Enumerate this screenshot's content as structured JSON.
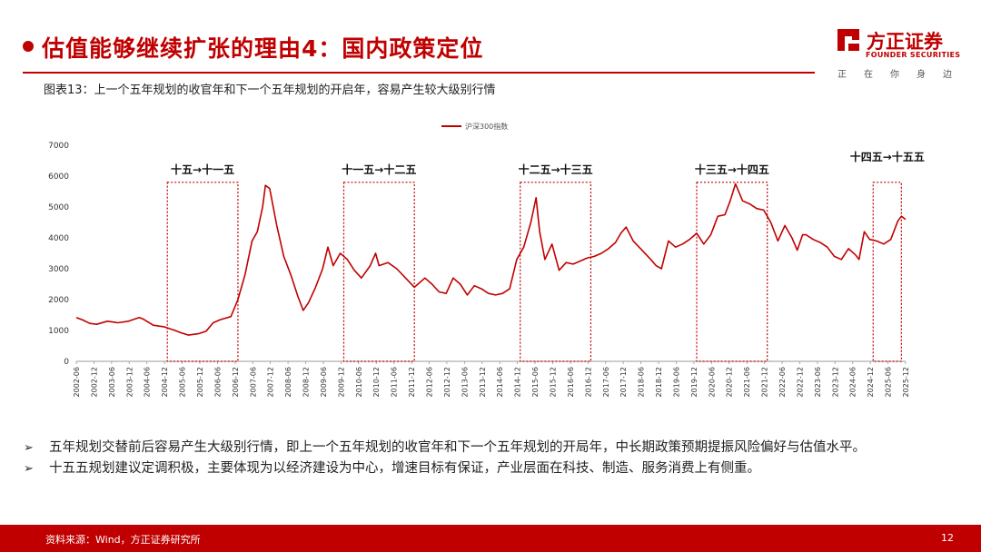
{
  "header": {
    "title": "估值能够继续扩张的理由4：国内政策定位"
  },
  "logo": {
    "name_cn": "方正证券",
    "name_en": "FOUNDER SECURITIES",
    "slogan": [
      "正",
      "在",
      "你",
      "身",
      "边"
    ]
  },
  "figure": {
    "caption": "图表13：上一个五年规划的收官年和下一个五年规划的开启年，容易产生较大级别行情"
  },
  "chart_data": {
    "type": "line",
    "legend": "沪深300指数",
    "legend_position": "top-center",
    "ylim": [
      0,
      7000
    ],
    "yticks": [
      0,
      1000,
      2000,
      3000,
      4000,
      5000,
      6000,
      7000
    ],
    "xtick_labels": [
      "2002-06",
      "2002-12",
      "2003-06",
      "2003-12",
      "2004-06",
      "2004-12",
      "2005-06",
      "2005-12",
      "2006-06",
      "2006-12",
      "2007-06",
      "2007-12",
      "2008-06",
      "2008-12",
      "2009-06",
      "2009-12",
      "2010-06",
      "2010-12",
      "2011-06",
      "2011-12",
      "2012-06",
      "2012-12",
      "2013-06",
      "2013-12",
      "2014-06",
      "2014-12",
      "2015-06",
      "2015-12",
      "2016-06",
      "2016-12",
      "2017-06",
      "2017-12",
      "2018-06",
      "2018-12",
      "2019-06",
      "2019-12",
      "2020-06",
      "2020-12",
      "2021-06",
      "2021-12",
      "2022-06",
      "2022-12",
      "2023-06",
      "2023-12",
      "2024-06",
      "2024-12",
      "2025-06",
      "2025-12"
    ],
    "x_start": 2002.42,
    "x_end": 2025.92,
    "series": [
      {
        "name": "沪深300指数",
        "color": "#c00000",
        "points": [
          [
            2002.42,
            1420
          ],
          [
            2002.6,
            1340
          ],
          [
            2002.8,
            1230
          ],
          [
            2003.0,
            1200
          ],
          [
            2003.3,
            1300
          ],
          [
            2003.6,
            1250
          ],
          [
            2003.9,
            1300
          ],
          [
            2004.2,
            1420
          ],
          [
            2004.3,
            1380
          ],
          [
            2004.6,
            1170
          ],
          [
            2004.9,
            1120
          ],
          [
            2005.2,
            1010
          ],
          [
            2005.4,
            920
          ],
          [
            2005.6,
            850
          ],
          [
            2005.9,
            900
          ],
          [
            2006.1,
            980
          ],
          [
            2006.3,
            1250
          ],
          [
            2006.5,
            1350
          ],
          [
            2006.8,
            1450
          ],
          [
            2007.0,
            2000
          ],
          [
            2007.2,
            2800
          ],
          [
            2007.4,
            3900
          ],
          [
            2007.55,
            4200
          ],
          [
            2007.7,
            5000
          ],
          [
            2007.78,
            5700
          ],
          [
            2007.9,
            5600
          ],
          [
            2008.0,
            5000
          ],
          [
            2008.1,
            4400
          ],
          [
            2008.3,
            3400
          ],
          [
            2008.5,
            2800
          ],
          [
            2008.7,
            2100
          ],
          [
            2008.85,
            1650
          ],
          [
            2009.0,
            1900
          ],
          [
            2009.2,
            2400
          ],
          [
            2009.4,
            3000
          ],
          [
            2009.55,
            3700
          ],
          [
            2009.7,
            3100
          ],
          [
            2009.9,
            3500
          ],
          [
            2010.1,
            3300
          ],
          [
            2010.3,
            2950
          ],
          [
            2010.5,
            2700
          ],
          [
            2010.75,
            3100
          ],
          [
            2010.9,
            3500
          ],
          [
            2011.0,
            3100
          ],
          [
            2011.25,
            3200
          ],
          [
            2011.5,
            3000
          ],
          [
            2011.75,
            2700
          ],
          [
            2012.0,
            2400
          ],
          [
            2012.3,
            2700
          ],
          [
            2012.5,
            2500
          ],
          [
            2012.7,
            2250
          ],
          [
            2012.9,
            2200
          ],
          [
            2013.1,
            2700
          ],
          [
            2013.3,
            2500
          ],
          [
            2013.5,
            2150
          ],
          [
            2013.7,
            2450
          ],
          [
            2013.9,
            2350
          ],
          [
            2014.1,
            2200
          ],
          [
            2014.3,
            2150
          ],
          [
            2014.5,
            2200
          ],
          [
            2014.7,
            2350
          ],
          [
            2014.9,
            3300
          ],
          [
            2015.1,
            3700
          ],
          [
            2015.3,
            4500
          ],
          [
            2015.45,
            5300
          ],
          [
            2015.55,
            4200
          ],
          [
            2015.7,
            3300
          ],
          [
            2015.9,
            3800
          ],
          [
            2016.1,
            2950
          ],
          [
            2016.3,
            3200
          ],
          [
            2016.5,
            3150
          ],
          [
            2016.7,
            3250
          ],
          [
            2016.9,
            3350
          ],
          [
            2017.1,
            3400
          ],
          [
            2017.3,
            3500
          ],
          [
            2017.5,
            3650
          ],
          [
            2017.7,
            3850
          ],
          [
            2017.85,
            4150
          ],
          [
            2018.0,
            4350
          ],
          [
            2018.2,
            3900
          ],
          [
            2018.45,
            3600
          ],
          [
            2018.7,
            3300
          ],
          [
            2018.85,
            3100
          ],
          [
            2019.0,
            3000
          ],
          [
            2019.2,
            3900
          ],
          [
            2019.4,
            3700
          ],
          [
            2019.6,
            3800
          ],
          [
            2019.8,
            3950
          ],
          [
            2020.0,
            4150
          ],
          [
            2020.2,
            3800
          ],
          [
            2020.4,
            4100
          ],
          [
            2020.6,
            4700
          ],
          [
            2020.8,
            4750
          ],
          [
            2020.95,
            5200
          ],
          [
            2021.1,
            5750
          ],
          [
            2021.3,
            5200
          ],
          [
            2021.5,
            5100
          ],
          [
            2021.7,
            4950
          ],
          [
            2021.9,
            4900
          ],
          [
            2022.1,
            4500
          ],
          [
            2022.3,
            3900
          ],
          [
            2022.5,
            4400
          ],
          [
            2022.7,
            4000
          ],
          [
            2022.85,
            3600
          ],
          [
            2023.0,
            4100
          ],
          [
            2023.1,
            4100
          ],
          [
            2023.3,
            3950
          ],
          [
            2023.5,
            3850
          ],
          [
            2023.7,
            3700
          ],
          [
            2023.9,
            3400
          ],
          [
            2024.1,
            3300
          ],
          [
            2024.3,
            3650
          ],
          [
            2024.5,
            3450
          ],
          [
            2024.6,
            3300
          ],
          [
            2024.75,
            4200
          ],
          [
            2024.9,
            3950
          ],
          [
            2025.1,
            3900
          ],
          [
            2025.3,
            3800
          ],
          [
            2025.5,
            3950
          ],
          [
            2025.7,
            4550
          ],
          [
            2025.8,
            4700
          ],
          [
            2025.92,
            4600
          ]
        ]
      }
    ],
    "annotations": [
      {
        "label": "十五→十一五",
        "x0": 2005.0,
        "x1": 2007.0
      },
      {
        "label": "十一五→十二五",
        "x0": 2010.0,
        "x1": 2012.0
      },
      {
        "label": "十二五→十三五",
        "x0": 2015.0,
        "x1": 2017.0
      },
      {
        "label": "十三五→十四五",
        "x0": 2020.0,
        "x1": 2022.0
      },
      {
        "label": "十四五→十五五",
        "x0": 2025.0,
        "x1": 2025.8
      }
    ],
    "box_ymin": 0,
    "box_ymax": 5800,
    "box_color": "#c00000"
  },
  "bullets": [
    "五年规划交替前后容易产生大级别行情，即上一个五年规划的收官年和下一个五年规划的开局年，中长期政策预期提振风险偏好与估值水平。",
    "十五五规划建议定调积极，主要体现为以经济建设为中心，增速目标有保证，产业层面在科技、制造、服务消费上有侧重。"
  ],
  "footer": {
    "source": "资料来源：Wind，方正证券研究所",
    "page": "12"
  },
  "colors": {
    "accent": "#c00000"
  }
}
